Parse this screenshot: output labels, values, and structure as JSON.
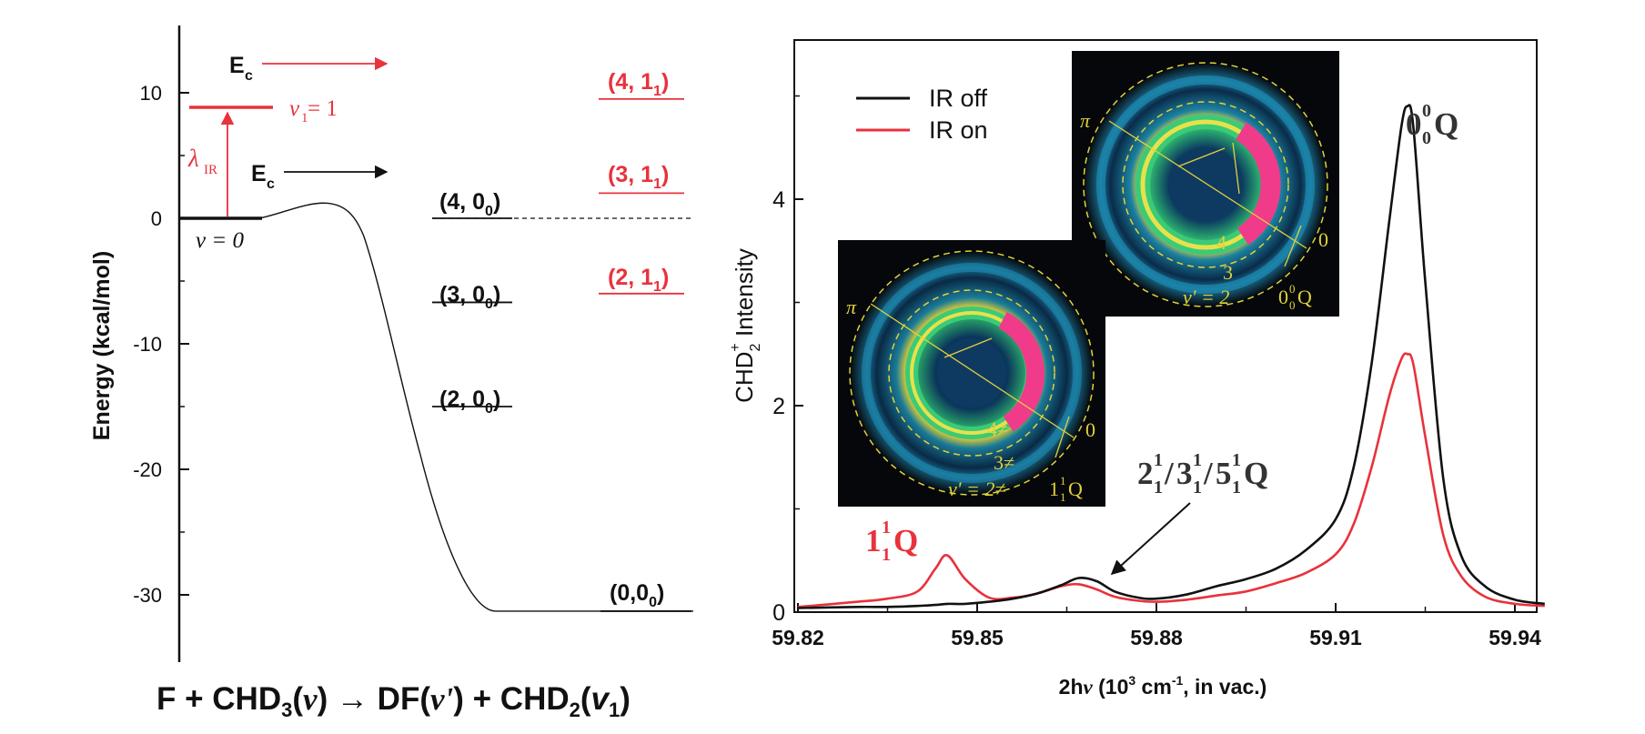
{
  "colors": {
    "black": "#111111",
    "red": "#e8323c",
    "ir_off": "#111111",
    "ir_on": "#e8323c",
    "ring": "#e2d23a",
    "inset_bg": "#05070a"
  },
  "left_panel": {
    "ylabel": "Energy (kcal/mol)",
    "yticks": [
      "10",
      "0",
      "-10",
      "-20",
      "-30"
    ],
    "ec_label": "E",
    "ec_sub": "c",
    "v1_level_label": "v",
    "v1_level_sub": "1",
    "v1_level_eq": " = 1",
    "lambda_label": "λ",
    "lambda_sub": "IR",
    "v0_label": "v = 0",
    "black_levels": [
      {
        "pre": "(4, 0",
        "sub": "0",
        "post": ")"
      },
      {
        "pre": "(3, 0",
        "sub": "0",
        "post": ")"
      },
      {
        "pre": "(2, 0",
        "sub": "0",
        "post": ")"
      },
      {
        "pre": "(0,0",
        "sub": "0",
        "post": ")"
      }
    ],
    "red_levels": [
      {
        "pre": "(4, 1",
        "sub": "1",
        "post": ")"
      },
      {
        "pre": "(3, 1",
        "sub": "1",
        "post": ")"
      },
      {
        "pre": "(2, 1",
        "sub": "1",
        "post": ")"
      }
    ],
    "reaction": {
      "p1": "F + CHD",
      "s1": "3",
      "p2": "(",
      "v": "v",
      "p3": ")  →  DF(",
      "vprime": "v'",
      "p4": ") + CHD",
      "s2": "2",
      "p5": "(",
      "v1": "v",
      "v1sub": "1",
      "p6": ")"
    }
  },
  "right_panel": {
    "ylabel_main": "CHD",
    "ylabel_sub": "2",
    "ylabel_sup": "+",
    "ylabel_rest": " Intensity",
    "xlabel_pre": "2h",
    "xlabel_nu": "v",
    "xlabel_mid": " (10",
    "xlabel_sup": "3",
    "xlabel_mid2": " cm",
    "xlabel_sup2": "-1",
    "xlabel_post": ", in vac.)",
    "xticks": [
      "59.82",
      "59.85",
      "59.88",
      "59.91",
      "59.94"
    ],
    "yticks": [
      "0",
      "2",
      "4"
    ],
    "legend": [
      "IR off",
      "IR on"
    ],
    "peak_labels": {
      "q00": {
        "base": "0",
        "sup": "0",
        "sub": "0",
        "tail": "Q"
      },
      "q11": {
        "base": "1",
        "sup": "1",
        "sub": "1",
        "tail": "Q"
      },
      "combo": {
        "a": "2",
        "b": "3",
        "c": "5",
        "sup": "1",
        "sub": "1",
        "slash": "/",
        "tail": "Q"
      }
    },
    "inset_top": {
      "pi": "π",
      "n4": "4",
      "n0": "0",
      "n3": "3",
      "vlabel": "v' = 2",
      "tag_base": "0",
      "tag_sup": "0",
      "tag_sub": "0",
      "tag_tail": "Q"
    },
    "inset_bottom": {
      "pi": "π",
      "n4": "4≠",
      "n0": "0",
      "n3": "3≠",
      "vlabel": "v' = 2≠",
      "tag_base": "1",
      "tag_sup": "1",
      "tag_sub": "1",
      "tag_tail": "Q"
    }
  },
  "chart_data": [
    {
      "type": "line",
      "title": "",
      "xlabel": "",
      "ylabel": "Energy (kcal/mol)",
      "ylim": [
        -35,
        15
      ],
      "grid": false,
      "series": [
        {
          "values_x": [
            0,
            1,
            2,
            3,
            4,
            5,
            6
          ],
          "values": [
            0,
            0,
            1.2,
            0,
            -20,
            -31.3,
            -31.3
          ]
        }
      ],
      "levels_black": [
        {
          "label": "(4, 00)",
          "y": 0
        },
        {
          "label": "(3, 00)",
          "y": -6.7
        },
        {
          "label": "(2, 00)",
          "y": -15
        },
        {
          "label": "(0,00)",
          "y": -31.3
        }
      ],
      "levels_red": [
        {
          "label": "(4, 11)",
          "y": 9.5
        },
        {
          "label": "(3, 11)",
          "y": 2
        },
        {
          "label": "(2, 11)",
          "y": -6
        }
      ],
      "reactant_levels": [
        {
          "label": "v1 = 1",
          "y": 8.6
        },
        {
          "label": "v = 0",
          "y": 0
        }
      ]
    },
    {
      "type": "line",
      "title": "",
      "xlabel": "2hv (103 cm-1, in vac.)",
      "ylabel": "CHD2+ Intensity",
      "xlim": [
        59.82,
        59.945
      ],
      "ylim": [
        0,
        5.5
      ],
      "grid": false,
      "legend": "top-left",
      "x": [
        59.82,
        59.83,
        59.835,
        59.84,
        59.843,
        59.845,
        59.848,
        59.852,
        59.856,
        59.86,
        59.864,
        59.867,
        59.87,
        59.873,
        59.877,
        59.88,
        59.885,
        59.89,
        59.895,
        59.9,
        59.905,
        59.91,
        59.913,
        59.916,
        59.919,
        59.921,
        59.922,
        59.923,
        59.925,
        59.928,
        59.931,
        59.935,
        59.94,
        59.945
      ],
      "series": [
        {
          "name": "IR off",
          "values": [
            0.04,
            0.05,
            0.05,
            0.06,
            0.07,
            0.08,
            0.08,
            0.1,
            0.13,
            0.18,
            0.26,
            0.33,
            0.3,
            0.2,
            0.14,
            0.13,
            0.17,
            0.25,
            0.32,
            0.42,
            0.6,
            0.9,
            1.4,
            2.4,
            3.8,
            4.7,
            4.9,
            4.7,
            3.2,
            1.3,
            0.55,
            0.25,
            0.12,
            0.08
          ]
        },
        {
          "name": "IR on",
          "values": [
            0.05,
            0.1,
            0.13,
            0.2,
            0.42,
            0.55,
            0.32,
            0.14,
            0.14,
            0.18,
            0.25,
            0.27,
            0.22,
            0.15,
            0.11,
            0.1,
            0.12,
            0.16,
            0.2,
            0.28,
            0.38,
            0.56,
            0.85,
            1.4,
            2.1,
            2.45,
            2.5,
            2.4,
            1.7,
            0.75,
            0.35,
            0.15,
            0.08,
            0.06
          ]
        }
      ]
    }
  ]
}
